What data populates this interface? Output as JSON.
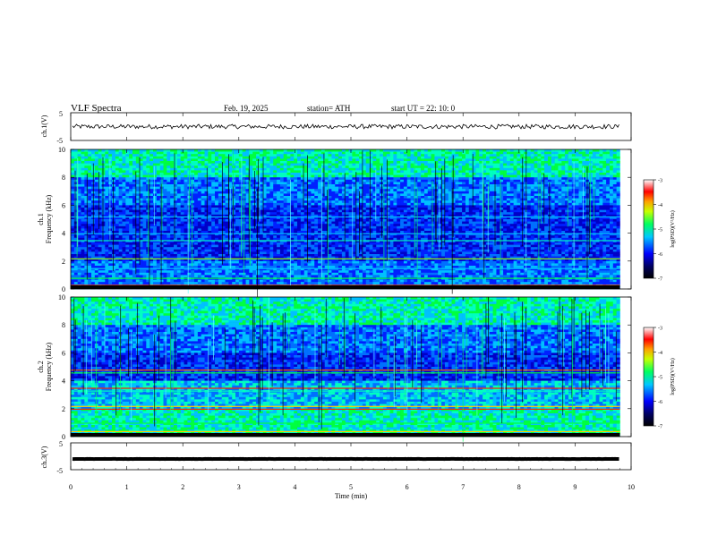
{
  "header": {
    "title": "VLF  Spectra",
    "date": "Feb. 19, 2025",
    "station": "station= ATH",
    "start": "start  UT  =    22: 10: 0"
  },
  "chart_data": [
    {
      "type": "line",
      "name": "ch1-waveform",
      "ylabel": "ch.1(V)",
      "ylim": [
        -5,
        5
      ],
      "yticks": [
        "5",
        "-5"
      ],
      "xlim": [
        0,
        10
      ],
      "trace_level": 0,
      "data_extent_min": 9.8
    },
    {
      "type": "heatmap",
      "name": "ch1-spectrogram",
      "ylabel": "Frequency  (kHz)",
      "channel_label": "ch.1",
      "ylim": [
        0,
        10
      ],
      "yticks": [
        "0",
        "2",
        "4",
        "6",
        "8",
        "10"
      ],
      "xlim": [
        0,
        10
      ],
      "data_extent_min": 9.8,
      "colorbar": {
        "label": "log(PSD)(V²/Hz)",
        "ticks": [
          "-3",
          "-4",
          "-5",
          "-6",
          "-7"
        ],
        "range": [
          -7,
          -3
        ]
      }
    },
    {
      "type": "heatmap",
      "name": "ch2-spectrogram",
      "ylabel": "Frequency  (kHz)",
      "channel_label": "ch.2",
      "ylim": [
        0,
        10
      ],
      "yticks": [
        "0",
        "2",
        "4",
        "6",
        "8",
        "10"
      ],
      "xlim": [
        0,
        10
      ],
      "data_extent_min": 9.8,
      "colorbar": {
        "label": "log(PSD)(V²/Hz)",
        "ticks": [
          "-3",
          "-4",
          "-5",
          "-6",
          "-7"
        ],
        "range": [
          -7,
          -3
        ]
      }
    },
    {
      "type": "line",
      "name": "ch3-waveform",
      "ylabel": "ch.3(V)",
      "ylim": [
        -5,
        5
      ],
      "yticks": [
        "5",
        "-5"
      ],
      "xlim": [
        0,
        10
      ],
      "trace_level": -1,
      "data_extent_min": 9.8
    }
  ],
  "xaxis": {
    "label": "Time  (min)",
    "ticks": [
      "0",
      "1",
      "2",
      "3",
      "4",
      "5",
      "6",
      "7",
      "8",
      "9",
      "10"
    ]
  }
}
